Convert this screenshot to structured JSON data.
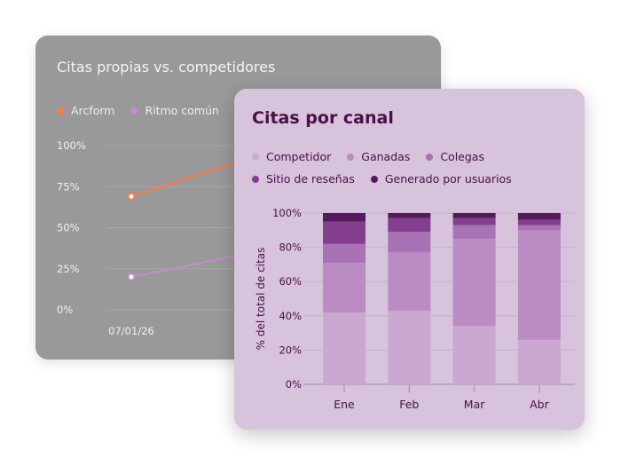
{
  "chart_data": [
    {
      "type": "line",
      "title": "Citas propias vs. competidores",
      "x": [
        "07/01/26"
      ],
      "yticks": [
        "100%",
        "75%",
        "50%",
        "25%",
        "0%"
      ],
      "ylim": [
        0,
        100
      ],
      "grid": true,
      "legend_position": "top-left",
      "series": [
        {
          "name": "Arcform",
          "values": [
            69
          ],
          "color": "#ff7a45"
        },
        {
          "name": "Ritmo común",
          "values": [
            20
          ],
          "color": "#c58ad0"
        }
      ]
    },
    {
      "type": "bar",
      "stacked": true,
      "title": "Citas por canal",
      "ylabel": "% del total de citas",
      "categories": [
        "Ene",
        "Feb",
        "Mar",
        "Abr"
      ],
      "yticks": [
        "100%",
        "80%",
        "60%",
        "40%",
        "20%",
        "0%"
      ],
      "ylim": [
        0,
        100
      ],
      "grid": true,
      "legend_position": "top",
      "series": [
        {
          "name": "Competidor",
          "values": [
            42,
            43,
            34,
            26
          ],
          "color": "#cba8d1"
        },
        {
          "name": "Ganadas",
          "values": [
            29,
            34,
            51,
            64
          ],
          "color": "#ba8cc3"
        },
        {
          "name": "Colegas",
          "values": [
            11,
            12,
            8,
            3
          ],
          "color": "#a972b5"
        },
        {
          "name": "Sitio de reseñas",
          "values": [
            13,
            8,
            4,
            3
          ],
          "color": "#843e8e"
        },
        {
          "name": "Generado por usuarios",
          "values": [
            5,
            3,
            3,
            4
          ],
          "color": "#561b5e"
        }
      ]
    }
  ]
}
